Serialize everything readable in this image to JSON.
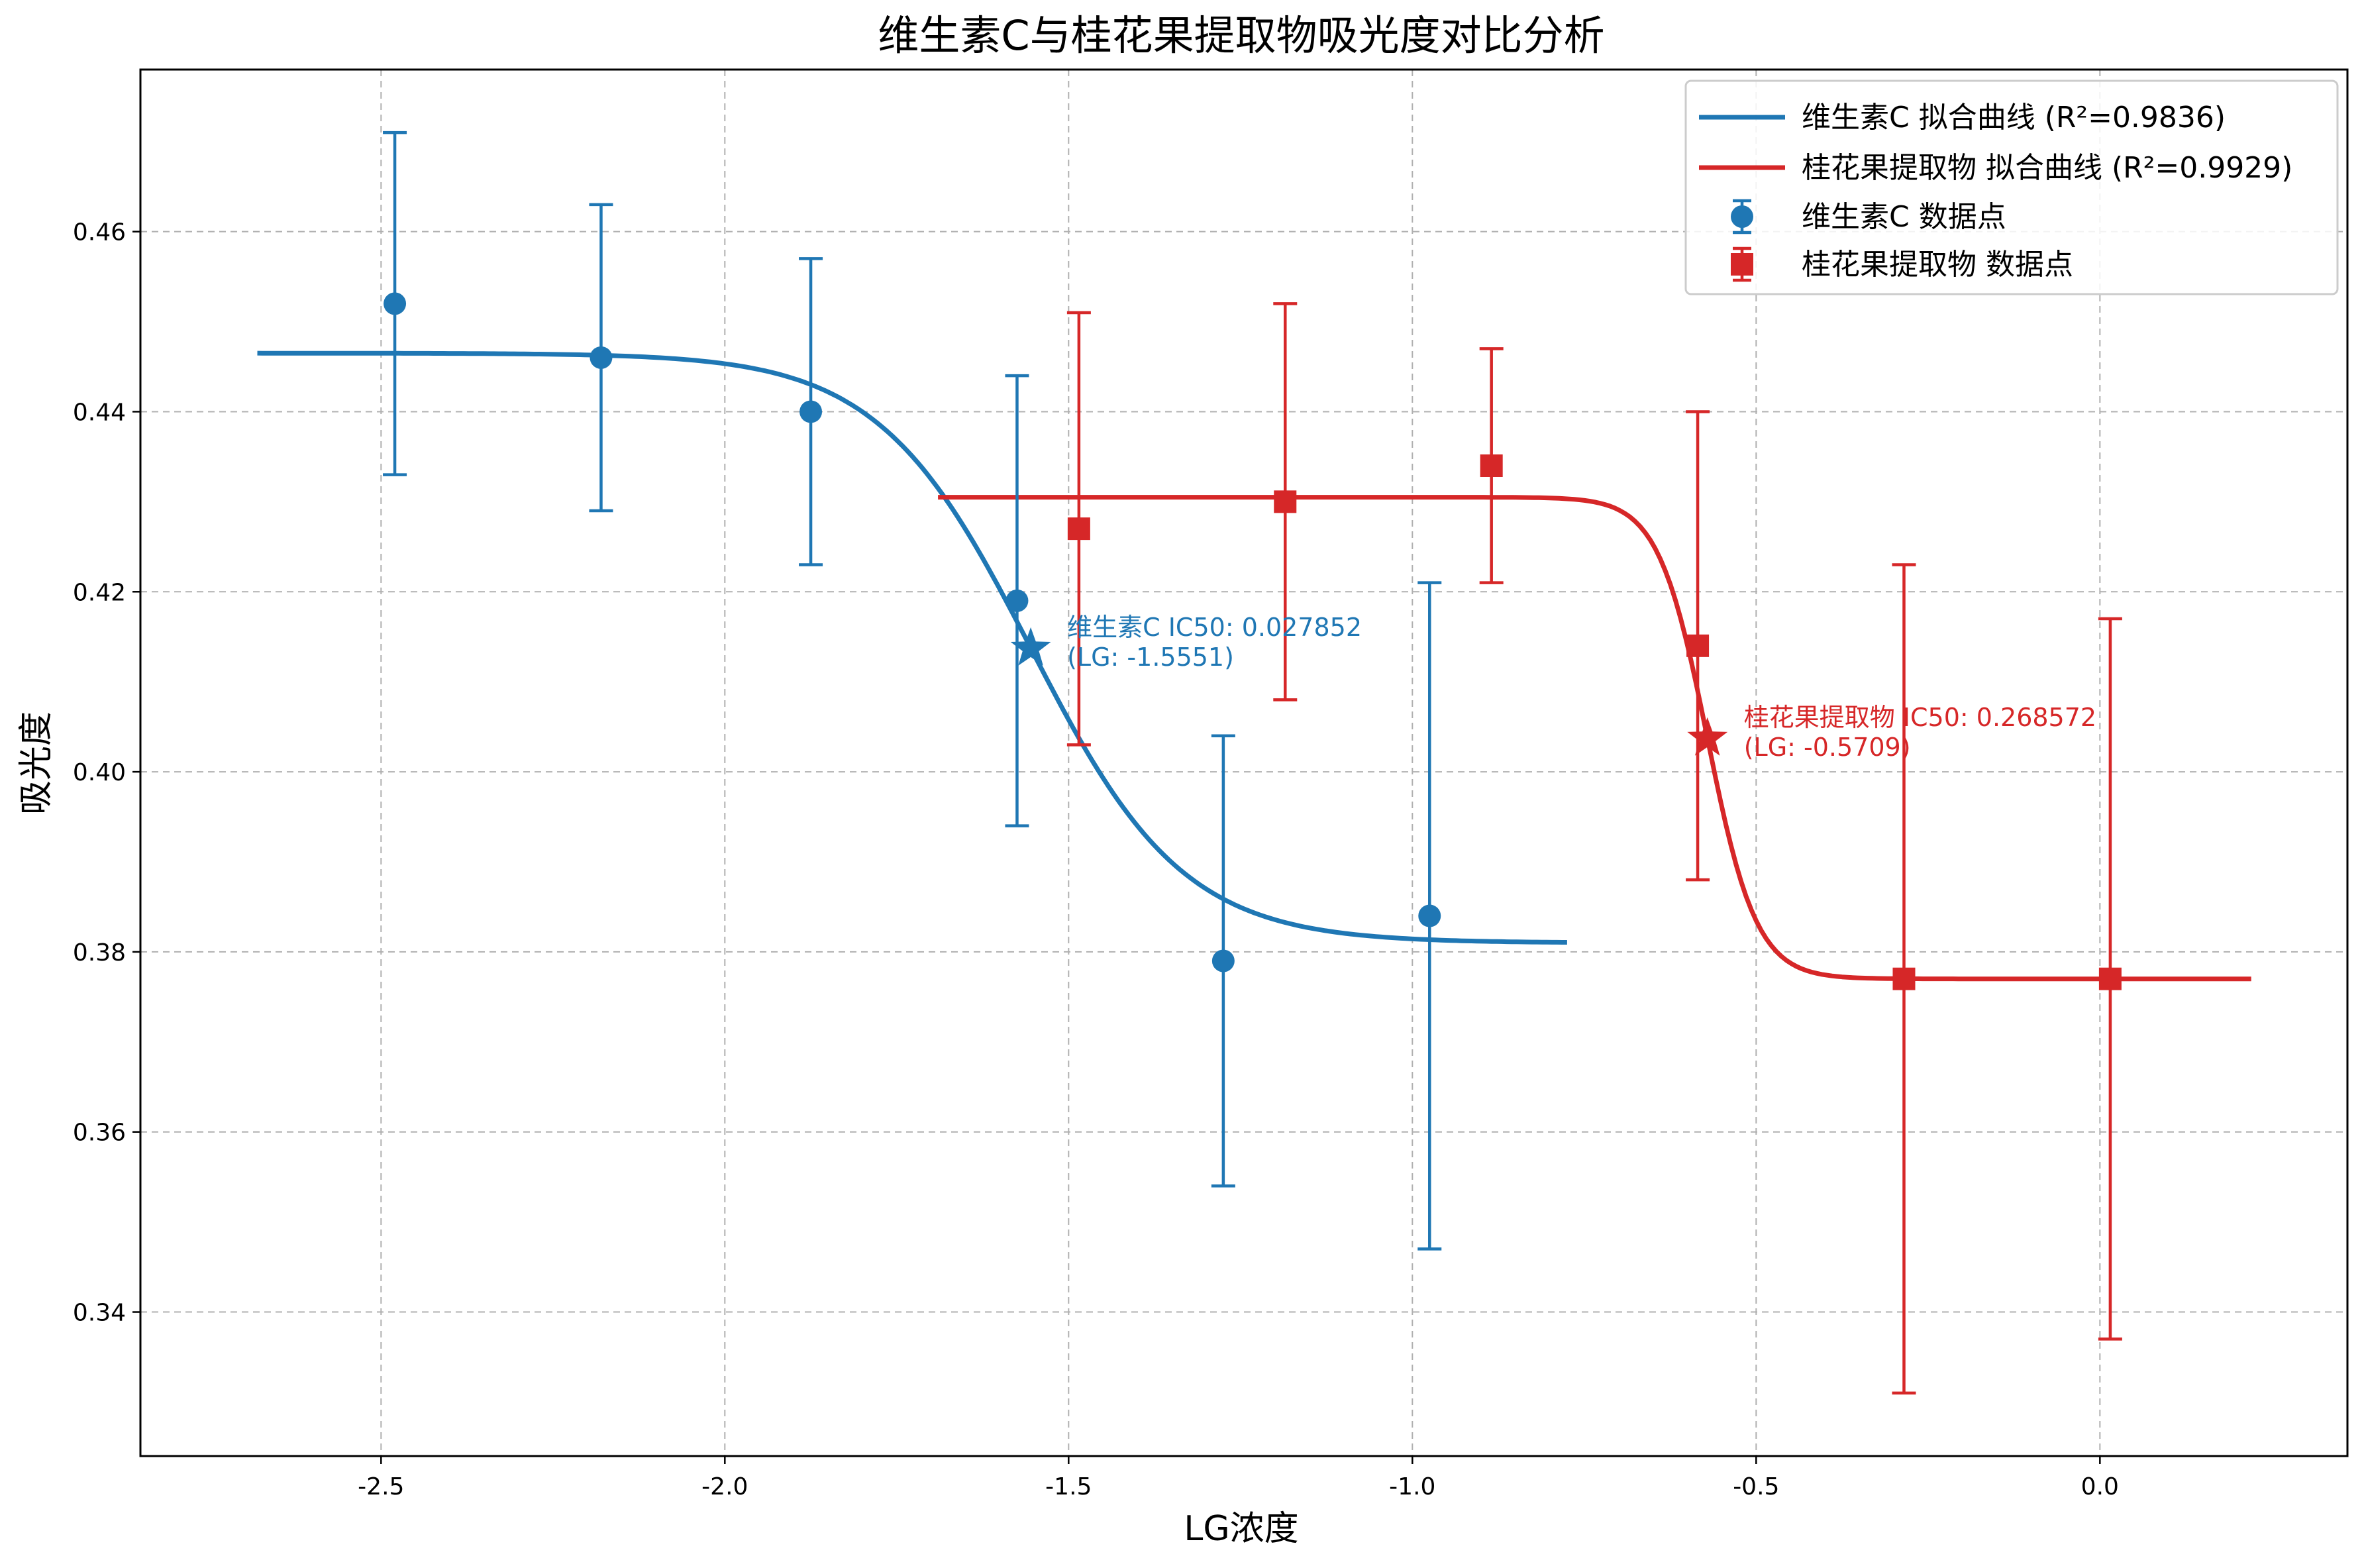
{
  "chart_data": {
    "type": "scatter",
    "title": "维生素C与桂花果提取物吸光度对比分析",
    "xlabel": "LG浓度",
    "ylabel": "吸光度",
    "xlim": [
      -2.85,
      0.36
    ],
    "ylim": [
      0.324,
      0.478
    ],
    "xticks": [
      -2.5,
      -2.0,
      -1.5,
      -1.0,
      -0.5,
      0.0
    ],
    "xtick_labels": [
      "-2.5",
      "-2.0",
      "-1.5",
      "-1.0",
      "-0.5",
      "0.0"
    ],
    "yticks": [
      0.34,
      0.36,
      0.38,
      0.4,
      0.42,
      0.44,
      0.46
    ],
    "ytick_labels": [
      "0.34",
      "0.36",
      "0.38",
      "0.40",
      "0.42",
      "0.44",
      "0.46"
    ],
    "grid": true,
    "legend_position": "top-right",
    "series": [
      {
        "name": "维生素C 数据点",
        "color": "#1f77b4",
        "marker": "circle",
        "x": [
          -2.48,
          -2.18,
          -1.875,
          -1.575,
          -1.275,
          -0.975
        ],
        "y": [
          0.452,
          0.446,
          0.44,
          0.419,
          0.379,
          0.384
        ],
        "yerr": [
          0.019,
          0.017,
          0.017,
          0.025,
          0.025,
          0.037
        ]
      },
      {
        "name": "桂花果提取物 数据点",
        "color": "#d62728",
        "marker": "square",
        "x": [
          -1.485,
          -1.185,
          -0.885,
          -0.585,
          -0.285,
          0.015
        ],
        "y": [
          0.427,
          0.43,
          0.434,
          0.414,
          0.377,
          0.377
        ],
        "yerr": [
          0.024,
          0.022,
          0.013,
          0.026,
          0.046,
          0.04
        ]
      }
    ],
    "fit_curves": [
      {
        "name": "维生素C 拟合曲线 (R²=0.9836)",
        "color": "#1f77b4",
        "x_range": [
          -2.68,
          -0.775
        ],
        "top": 0.4465,
        "bottom": 0.381,
        "ic50_lg": -1.5551,
        "slope": 9
      },
      {
        "name": "桂花果提取物 拟合曲线 (R²=0.9929)",
        "color": "#d62728",
        "x_range": [
          -1.69,
          0.22
        ],
        "top": 0.4305,
        "bottom": 0.377,
        "ic50_lg": -0.5709,
        "slope": 28
      }
    ],
    "ic50_markers": [
      {
        "x": -1.5551,
        "y": 0.4137,
        "color": "#1f77b4",
        "label_line1": "维生素C IC50: 0.027852",
        "label_line2": "(LG: -1.5551)"
      },
      {
        "x": -0.5709,
        "y": 0.4037,
        "color": "#d62728",
        "label_line1": "桂花果提取物 IC50: 0.268572",
        "label_line2": "(LG: -0.5709)"
      }
    ],
    "legend": [
      {
        "label": "维生素C 拟合曲线 (R²=0.9836)",
        "kind": "line",
        "color": "#1f77b4"
      },
      {
        "label": "桂花果提取物 拟合曲线 (R²=0.9929)",
        "kind": "line",
        "color": "#d62728"
      },
      {
        "label": "维生素C 数据点",
        "kind": "circle",
        "color": "#1f77b4"
      },
      {
        "label": "桂花果提取物 数据点",
        "kind": "square",
        "color": "#d62728"
      }
    ]
  }
}
